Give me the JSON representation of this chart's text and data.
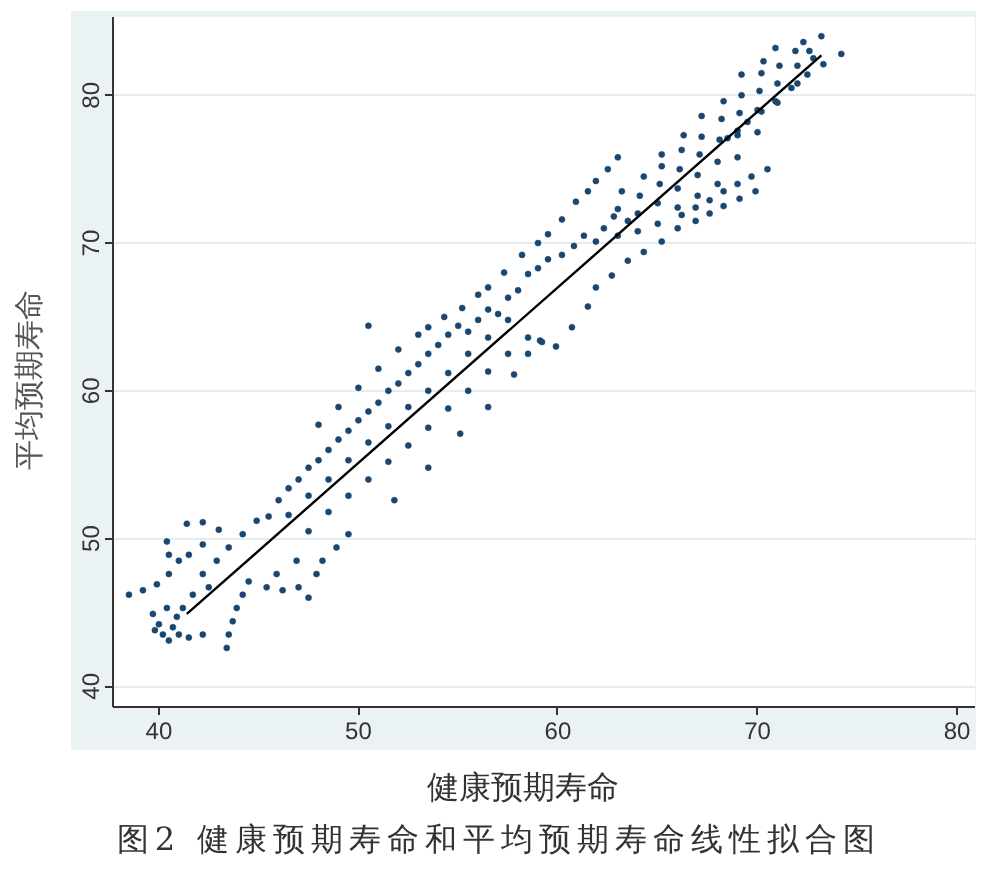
{
  "chart_data": {
    "type": "scatter",
    "xlabel": "健康预期寿命",
    "ylabel": "平均预期寿命",
    "annotations": [
      "图2 健康预期寿命和平均预期寿命线性拟合图"
    ],
    "xlim": [
      37.7,
      80.9
    ],
    "ylim": [
      38.6,
      85.3
    ],
    "xticks": [
      40,
      50,
      60,
      70,
      80
    ],
    "yticks": [
      40,
      50,
      60,
      70,
      80
    ],
    "grid": "y",
    "series": [
      {
        "marker": "circle",
        "color": "#1a476f",
        "x": [
          38.5,
          39.2,
          39.9,
          40.5,
          41.0,
          41.5,
          42.2,
          40.0,
          40.2,
          40.5,
          39.7,
          40.9,
          40.4,
          39.8,
          40.7,
          41.0,
          41.5,
          42.2,
          43.4,
          43.5,
          43.7,
          43.9,
          44.2,
          44.5,
          45.4,
          46.2,
          47.0,
          45.9,
          46.9,
          47.5,
          47.9,
          48.2,
          48.9,
          49.5,
          42.2,
          42.9,
          43.5,
          44.2,
          44.9,
          41.2,
          41.7,
          42.5,
          40.5,
          40.4,
          41.4,
          42.2,
          43.0,
          45.5,
          46.0,
          46.5,
          47.0,
          47.5,
          48.0,
          48.5,
          49.0,
          49.5,
          50.0,
          50.5,
          51.0,
          51.5,
          52.0,
          52.5,
          53.0,
          53.5,
          54.0,
          54.5,
          55.0,
          46.5,
          47.5,
          48.5,
          49.5,
          50.5,
          51.5,
          52.5,
          53.5,
          54.5,
          55.5,
          56.5,
          57.5,
          47.5,
          48.5,
          49.5,
          50.5,
          51.5,
          52.5,
          53.5,
          54.5,
          55.5,
          56.5,
          57.5,
          58.5,
          51.8,
          53.5,
          55.1,
          56.5,
          57.8,
          59.1,
          48.0,
          49.0,
          50.0,
          51.0,
          52.0,
          53.0,
          50.5,
          53.5,
          54.3,
          55.2,
          56.0,
          56.5,
          57.3,
          58.2,
          59.0,
          59.5,
          60.2,
          60.9,
          61.5,
          61.9,
          62.5,
          63.0,
          55.5,
          56.0,
          56.5,
          57.0,
          57.5,
          58.0,
          58.5,
          59.0,
          59.5,
          60.2,
          60.8,
          61.3,
          61.9,
          62.3,
          62.8,
          63.5,
          58.5,
          59.2,
          59.9,
          60.7,
          61.5,
          61.9,
          62.7,
          63.5,
          64.3,
          65.2,
          66.0,
          63.0,
          63.0,
          63.2,
          64.0,
          64.0,
          64.1,
          64.3,
          65.0,
          65.0,
          65.1,
          65.2,
          65.2,
          66.0,
          66.0,
          66.1,
          66.2,
          66.3,
          67.0,
          67.0,
          67.1,
          67.2,
          67.2,
          68.0,
          68.0,
          68.1,
          68.2,
          68.3,
          69.0,
          69.0,
          69.1,
          69.2,
          69.2,
          70.0,
          70.0,
          70.1,
          70.2,
          70.3,
          71.0,
          71.0,
          71.1,
          70.9,
          72.0,
          72.0,
          71.9,
          72.3,
          72.8,
          73.2,
          72.6,
          66.2,
          66.9,
          67.6,
          68.3,
          69.0,
          69.7,
          70.5,
          66.9,
          67.6,
          68.3,
          69.1,
          69.9,
          68.5,
          69.0,
          69.5,
          70.2,
          70.9,
          71.7,
          72.5,
          73.3,
          74.2
        ],
        "values": [
          46.2,
          46.5,
          46.9,
          47.6,
          48.5,
          48.9,
          49.6,
          44.2,
          43.5,
          43.1,
          44.9,
          44.7,
          45.3,
          43.8,
          44.0,
          43.5,
          43.3,
          43.5,
          42.6,
          43.5,
          44.4,
          45.3,
          46.2,
          47.1,
          46.7,
          46.5,
          46.7,
          47.6,
          48.5,
          46.0,
          47.6,
          48.5,
          49.4,
          50.3,
          47.6,
          48.5,
          49.4,
          50.3,
          51.2,
          45.3,
          46.2,
          46.7,
          48.9,
          49.8,
          51.0,
          51.1,
          50.6,
          51.5,
          52.6,
          53.4,
          54.0,
          54.8,
          55.3,
          56.0,
          56.7,
          57.3,
          58.0,
          58.6,
          59.2,
          60.0,
          60.5,
          61.2,
          61.8,
          62.5,
          63.1,
          63.8,
          64.4,
          51.6,
          52.9,
          54.0,
          55.3,
          56.5,
          57.6,
          58.9,
          60.0,
          61.2,
          62.5,
          63.6,
          64.8,
          50.5,
          51.8,
          52.9,
          54.0,
          55.2,
          56.3,
          57.5,
          58.8,
          60.0,
          61.3,
          62.5,
          63.6,
          52.6,
          54.8,
          57.1,
          58.9,
          61.1,
          63.4,
          57.7,
          58.9,
          60.2,
          61.5,
          62.8,
          63.8,
          64.4,
          64.3,
          65.0,
          65.6,
          66.5,
          67.0,
          68.0,
          69.2,
          70.0,
          70.6,
          71.6,
          72.8,
          73.5,
          74.2,
          75.0,
          75.8,
          64.0,
          64.8,
          65.5,
          65.2,
          66.3,
          66.8,
          67.9,
          68.3,
          68.9,
          69.2,
          69.8,
          70.5,
          70.1,
          71.0,
          71.8,
          71.5,
          62.5,
          63.3,
          63.0,
          64.3,
          65.7,
          67.0,
          67.8,
          68.8,
          69.4,
          70.1,
          71.0,
          70.5,
          72.3,
          73.5,
          70.8,
          72.0,
          73.2,
          74.5,
          71.3,
          72.7,
          74.0,
          75.2,
          76.0,
          72.4,
          73.7,
          75.0,
          76.3,
          77.3,
          73.2,
          74.6,
          76.0,
          77.2,
          78.6,
          74.0,
          75.5,
          77.0,
          78.4,
          79.6,
          75.8,
          77.3,
          78.8,
          80.0,
          81.4,
          77.5,
          79.0,
          80.3,
          81.5,
          82.3,
          79.5,
          80.8,
          82.0,
          83.2,
          80.8,
          82.0,
          83.0,
          83.6,
          82.5,
          84.0,
          83.0,
          71.9,
          72.4,
          72.9,
          73.5,
          74.0,
          74.5,
          75.0,
          71.5,
          72.0,
          72.5,
          73.0,
          73.5,
          77.1,
          77.6,
          78.2,
          78.9,
          79.6,
          80.5,
          81.4,
          82.1,
          82.8
        ]
      },
      {
        "type": "line",
        "color": "#000000",
        "x": [
          41.4,
          73.2
        ],
        "values": [
          44.9,
          82.7
        ]
      }
    ]
  }
}
